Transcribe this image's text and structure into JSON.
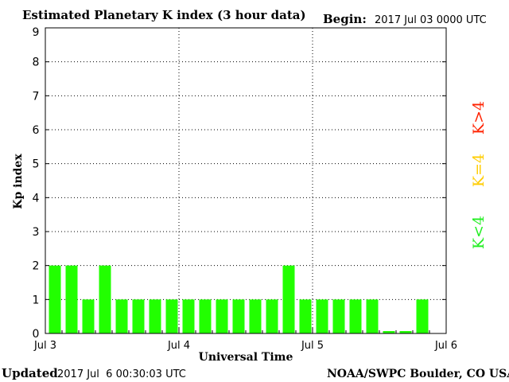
{
  "header": {
    "title": "Estimated Planetary K index (3 hour data)",
    "begin_label": "Begin:",
    "begin_value": "2017 Jul 03 0000 UTC"
  },
  "footer": {
    "updated_label": "Updated",
    "updated_value": "2017 Jul  6 00:30:03 UTC",
    "credit": "NOAA/SWPC Boulder, CO USA"
  },
  "legend": {
    "high": "K>4",
    "equal": "K=4",
    "low": "K<4",
    "colors": {
      "high": "#ff2200",
      "equal": "#ffcc00",
      "low": "#22ee22"
    }
  },
  "chart_data": {
    "type": "bar",
    "title": "Estimated Planetary K index (3 hour data)",
    "xlabel": "Universal Time",
    "ylabel": "Kp index",
    "ylim": [
      0,
      9
    ],
    "yticks": [
      "0",
      "1",
      "2",
      "3",
      "4",
      "5",
      "6",
      "7",
      "8",
      "9"
    ],
    "xtick_labels": [
      "Jul 3",
      "Jul 4",
      "Jul 5",
      "Jul 6"
    ],
    "grid": true,
    "bar_color": "#22ff00",
    "categories": [
      "Jul 3 00",
      "Jul 3 03",
      "Jul 3 06",
      "Jul 3 09",
      "Jul 3 12",
      "Jul 3 15",
      "Jul 3 18",
      "Jul 3 21",
      "Jul 4 00",
      "Jul 4 03",
      "Jul 4 06",
      "Jul 4 09",
      "Jul 4 12",
      "Jul 4 15",
      "Jul 4 18",
      "Jul 4 21",
      "Jul 5 00",
      "Jul 5 03",
      "Jul 5 06",
      "Jul 5 09",
      "Jul 5 12",
      "Jul 5 15",
      "Jul 5 18",
      "Jul 5 21"
    ],
    "values": [
      2,
      2,
      1,
      2,
      1,
      1,
      1,
      1,
      1,
      1,
      1,
      1,
      1,
      1,
      2,
      1,
      1,
      1,
      1,
      1,
      0,
      0,
      1,
      0
    ],
    "shown": [
      true,
      true,
      true,
      true,
      true,
      true,
      true,
      true,
      true,
      true,
      true,
      true,
      true,
      true,
      true,
      true,
      true,
      true,
      true,
      true,
      true,
      true,
      true,
      false
    ]
  }
}
